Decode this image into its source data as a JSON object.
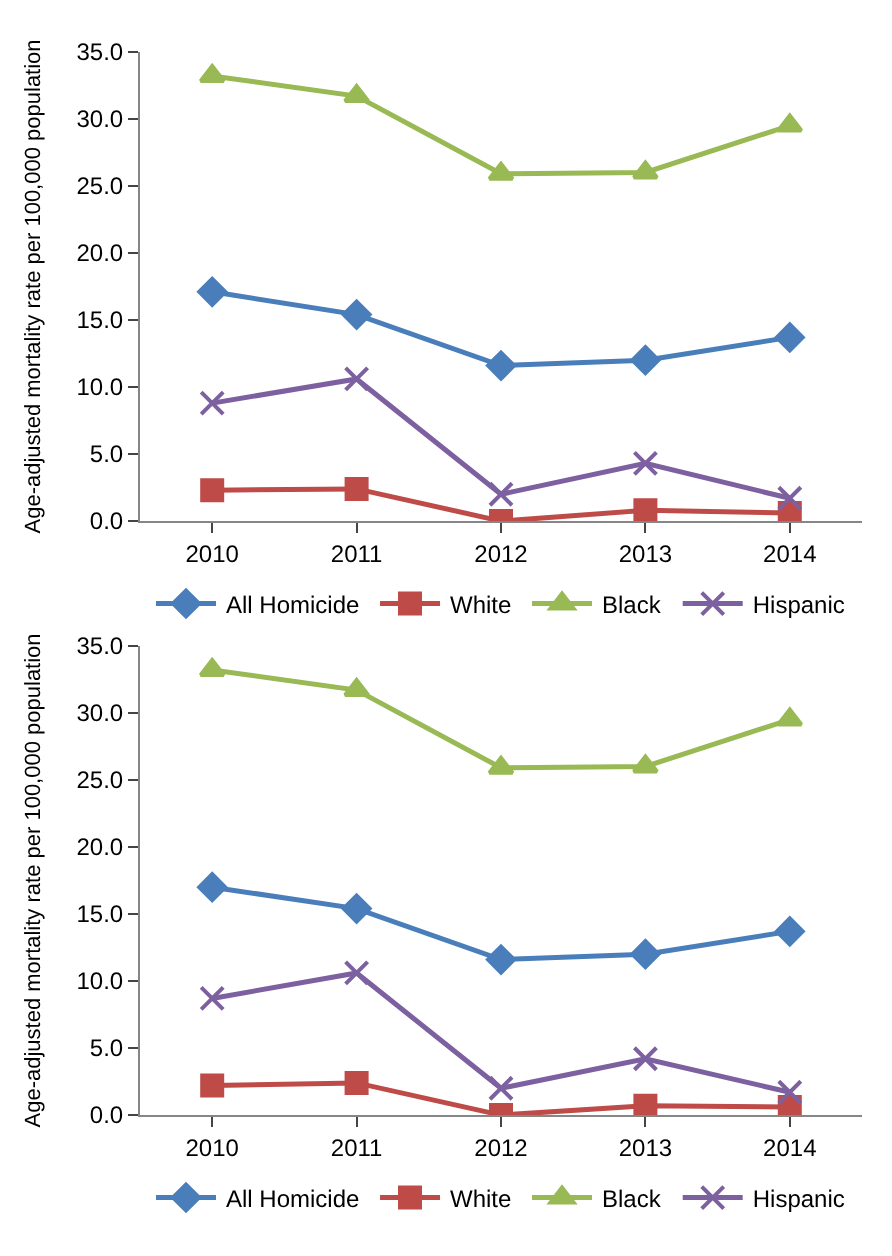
{
  "chart_data": [
    {
      "type": "line",
      "ylabel": "Age-adjusted mortality rate per 100,000 population",
      "categories": [
        "2010",
        "2011",
        "2012",
        "2013",
        "2014"
      ],
      "ylim": [
        0,
        35
      ],
      "yticks": [
        {
          "value": 0,
          "label": "0.0"
        },
        {
          "value": 5,
          "label": "5.0"
        },
        {
          "value": 10,
          "label": "10.0"
        },
        {
          "value": 15,
          "label": "15.0"
        },
        {
          "value": 20,
          "label": "20.0"
        },
        {
          "value": 25,
          "label": "25.0"
        },
        {
          "value": 30,
          "label": "30.0"
        },
        {
          "value": 35,
          "label": "35.0"
        }
      ],
      "legend": "bottom",
      "line_style": "solid",
      "series": [
        {
          "name": "All Homicide",
          "color": "#4a7ebb",
          "marker": "diamond",
          "values": [
            17.1,
            15.4,
            11.6,
            12.0,
            13.7
          ]
        },
        {
          "name": "White",
          "color": "#be4b48",
          "marker": "square",
          "values": [
            2.3,
            2.4,
            0.0,
            0.8,
            0.6
          ]
        },
        {
          "name": "Black",
          "color": "#98b954",
          "marker": "triangle",
          "values": [
            33.2,
            31.7,
            25.9,
            26.0,
            29.5
          ]
        },
        {
          "name": "Hispanic",
          "color": "#7d60a0",
          "marker": "cross",
          "values": [
            8.8,
            10.6,
            2.0,
            4.3,
            1.7
          ]
        }
      ]
    },
    {
      "type": "line",
      "ylabel": "Age-adjusted mortality rate per 100,000 population",
      "categories": [
        "2010",
        "2011",
        "2012",
        "2013",
        "2014"
      ],
      "ylim": [
        0,
        35
      ],
      "yticks": [
        {
          "value": 0,
          "label": "0.0"
        },
        {
          "value": 5,
          "label": "5.0"
        },
        {
          "value": 10,
          "label": "10.0"
        },
        {
          "value": 15,
          "label": "15.0"
        },
        {
          "value": 20,
          "label": "20.0"
        },
        {
          "value": 25,
          "label": "25.0"
        },
        {
          "value": 30,
          "label": "30.0"
        },
        {
          "value": 35,
          "label": "35.0"
        }
      ],
      "legend": "bottom",
      "line_style": "solid",
      "series": [
        {
          "name": "All Homicide",
          "color": "#4a7ebb",
          "marker": "diamond",
          "values": [
            17.0,
            15.4,
            11.6,
            12.0,
            13.7
          ]
        },
        {
          "name": "White",
          "color": "#be4b48",
          "marker": "square",
          "values": [
            2.2,
            2.4,
            0.0,
            0.7,
            0.6
          ]
        },
        {
          "name": "Black",
          "color": "#98b954",
          "marker": "triangle",
          "values": [
            33.2,
            31.7,
            25.9,
            26.0,
            29.5
          ]
        },
        {
          "name": "Hispanic",
          "color": "#7d60a0",
          "marker": "cross",
          "values": [
            8.7,
            10.6,
            2.0,
            4.2,
            1.7
          ]
        }
      ]
    }
  ]
}
